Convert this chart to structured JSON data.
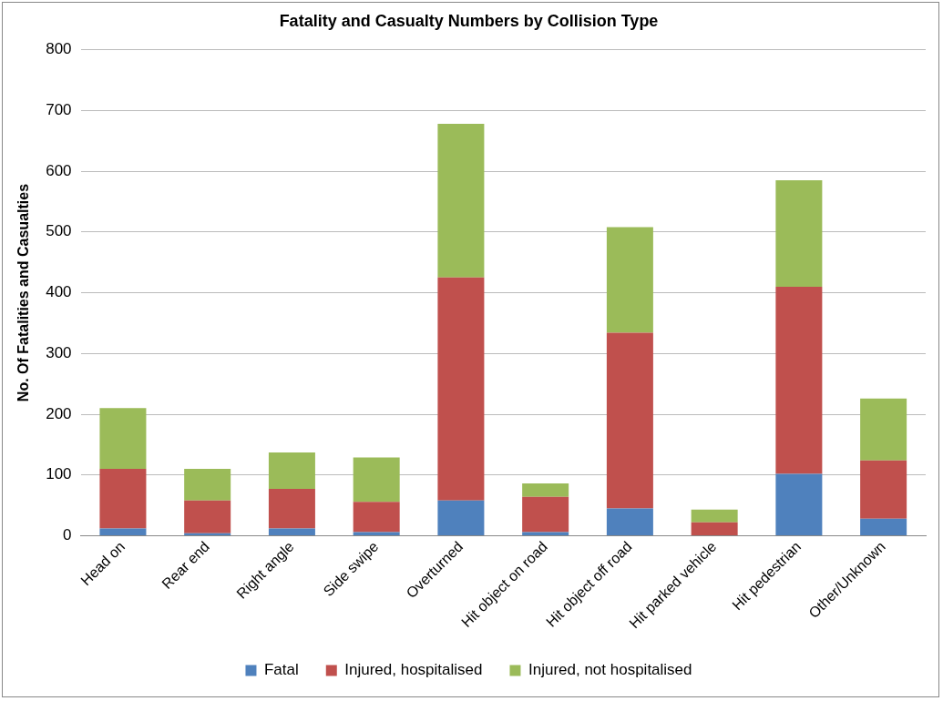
{
  "chart_data": {
    "type": "bar",
    "title": "Fatality and Casualty Numbers by Collision Type",
    "ylabel": "No. Of Fatalities and Casualties",
    "categories": [
      "Head on",
      "Rear end",
      "Right angle",
      "Side swipe",
      "Overturned",
      "Hit object on road",
      "Hit object off road",
      "Hit parked vehicle",
      "Hit pedestrian",
      "Other/Unknown"
    ],
    "stacked": true,
    "series": [
      {
        "name": "Fatal",
        "color": "#4f81bd",
        "values": [
          12,
          4,
          12,
          6,
          58,
          6,
          45,
          null,
          102,
          28
        ]
      },
      {
        "name": "Injured, hospitalised",
        "color": "#c0504d",
        "values": [
          98,
          54,
          65,
          50,
          367,
          58,
          289,
          22,
          308,
          96
        ]
      },
      {
        "name": "Injured, not hospitalised",
        "color": "#9bbb59",
        "values": [
          100,
          52,
          60,
          73,
          253,
          22,
          174,
          21,
          175,
          102
        ]
      }
    ],
    "ylim": [
      0,
      800
    ],
    "yticks": [
      0,
      100,
      200,
      300,
      400,
      500,
      600,
      700,
      800
    ],
    "grid": "y",
    "legend": "bottom"
  }
}
